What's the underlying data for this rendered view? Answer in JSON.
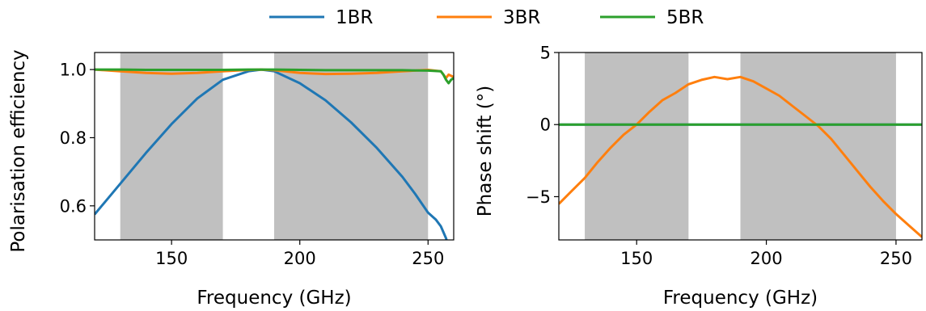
{
  "colors": {
    "band": "#c0c0c0",
    "axis": "#000000"
  },
  "legend": {
    "placement": "top-center",
    "entries": [
      {
        "name": "1BR",
        "color": "#1f77b4"
      },
      {
        "name": "3BR",
        "color": "#ff7f0e"
      },
      {
        "name": "5BR",
        "color": "#2ca02c"
      }
    ]
  },
  "chart_data": [
    {
      "type": "line",
      "xlabel": "Frequency (GHz)",
      "ylabel": "Polarisation efficiency",
      "xlim": [
        120,
        260
      ],
      "ylim": [
        0.5,
        1.05
      ],
      "xticks": [
        150,
        200,
        250
      ],
      "xtick_labels": [
        "150",
        "200",
        "250"
      ],
      "yticks": [
        0.6,
        0.8,
        1.0
      ],
      "ytick_labels": [
        "0.6",
        "0.8",
        "1.0"
      ],
      "grid": false,
      "shaded_bands": [
        [
          130,
          170
        ],
        [
          190,
          250
        ]
      ],
      "series": [
        {
          "name": "1BR",
          "color": "#1f77b4",
          "x": [
            120,
            130,
            140,
            150,
            160,
            170,
            180,
            185,
            190,
            200,
            210,
            220,
            230,
            240,
            245,
            250,
            253,
            255,
            257,
            258
          ],
          "y": [
            0.575,
            0.665,
            0.755,
            0.84,
            0.915,
            0.97,
            0.995,
            1.0,
            0.995,
            0.96,
            0.91,
            0.845,
            0.77,
            0.685,
            0.635,
            0.58,
            0.56,
            0.54,
            0.505,
            0.48
          ]
        },
        {
          "name": "3BR",
          "color": "#ff7f0e",
          "x": [
            120,
            130,
            140,
            150,
            160,
            170,
            180,
            185,
            190,
            200,
            210,
            220,
            230,
            240,
            250,
            255,
            257,
            258,
            260
          ],
          "y": [
            1.0,
            0.995,
            0.99,
            0.988,
            0.99,
            0.995,
            0.999,
            1.0,
            0.998,
            0.99,
            0.987,
            0.988,
            0.99,
            0.995,
            0.999,
            0.995,
            0.975,
            0.985,
            0.978
          ]
        },
        {
          "name": "5BR",
          "color": "#2ca02c",
          "x": [
            120,
            130,
            140,
            150,
            160,
            170,
            180,
            190,
            200,
            210,
            220,
            230,
            240,
            250,
            255,
            256,
            257,
            258,
            259,
            260
          ],
          "y": [
            1.0,
            1.0,
            0.999,
            0.999,
            0.999,
            0.999,
            1.0,
            1.0,
            0.999,
            0.998,
            0.998,
            0.998,
            0.998,
            0.997,
            0.995,
            0.985,
            0.97,
            0.96,
            0.97,
            0.975
          ]
        }
      ]
    },
    {
      "type": "line",
      "xlabel": "Frequency (GHz)",
      "ylabel": "Phase shift (°)",
      "xlim": [
        120,
        260
      ],
      "ylim": [
        -8,
        5
      ],
      "xticks": [
        150,
        200,
        250
      ],
      "xtick_labels": [
        "150",
        "200",
        "250"
      ],
      "yticks": [
        -5,
        0,
        5
      ],
      "ytick_labels": [
        "−5",
        "0",
        "5"
      ],
      "grid": false,
      "shaded_bands": [
        [
          130,
          170
        ],
        [
          190,
          250
        ]
      ],
      "series": [
        {
          "name": "1BR",
          "color": "#1f77b4",
          "x": [
            120,
            260
          ],
          "y": [
            0,
            0
          ]
        },
        {
          "name": "3BR",
          "color": "#ff7f0e",
          "x": [
            120,
            125,
            130,
            135,
            140,
            145,
            150,
            155,
            160,
            165,
            170,
            175,
            180,
            185,
            190,
            195,
            200,
            205,
            210,
            215,
            220,
            225,
            230,
            235,
            240,
            245,
            250,
            255,
            260
          ],
          "y": [
            -5.5,
            -4.6,
            -3.7,
            -2.6,
            -1.6,
            -0.7,
            0.0,
            0.9,
            1.7,
            2.2,
            2.8,
            3.1,
            3.3,
            3.15,
            3.3,
            3.0,
            2.5,
            2.0,
            1.3,
            0.6,
            -0.1,
            -1.0,
            -2.1,
            -3.2,
            -4.3,
            -5.3,
            -6.2,
            -7.0,
            -7.8
          ]
        },
        {
          "name": "5BR",
          "color": "#2ca02c",
          "x": [
            120,
            260
          ],
          "y": [
            0,
            0
          ]
        }
      ]
    }
  ]
}
